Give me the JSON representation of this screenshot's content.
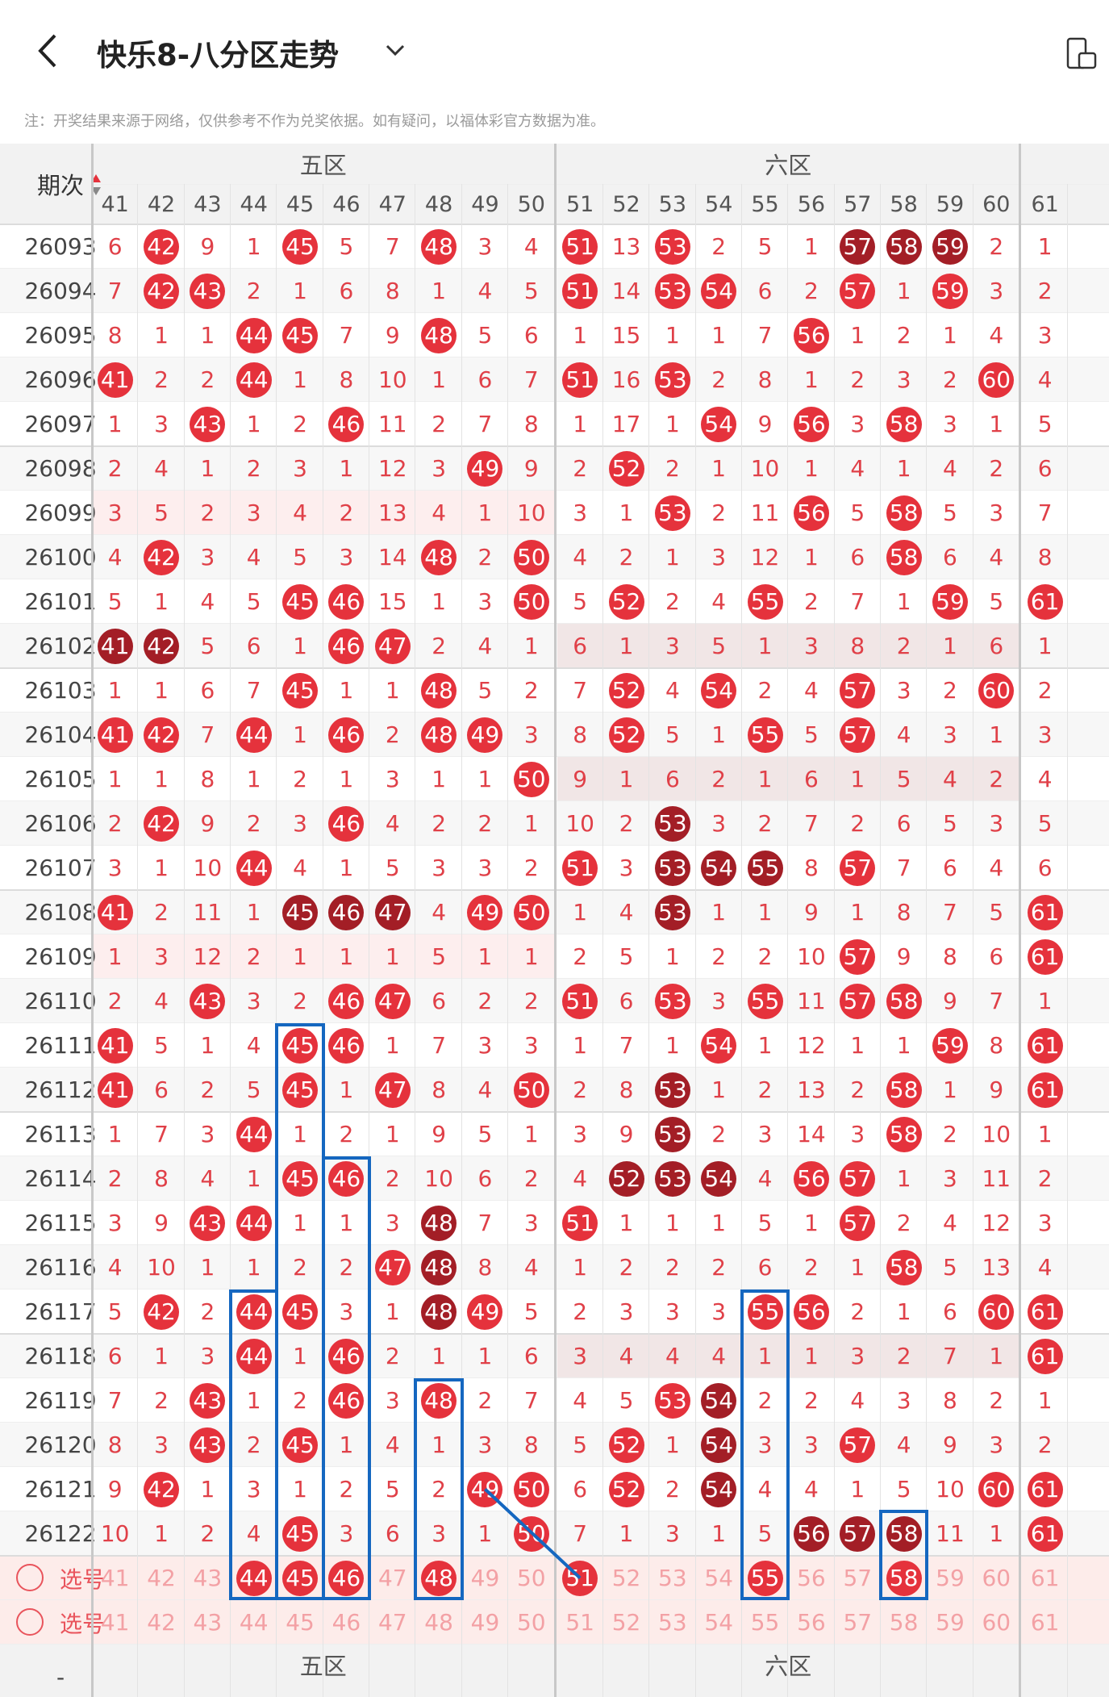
{
  "header": {
    "title": "快乐8-八分区走势",
    "note": "注：开奖结果来源于网络，仅供参考不作为兑奖依据。如有疑问，以福体彩官方数据为准。"
  },
  "table": {
    "issue_header": "期次",
    "zone_labels": [
      "五区",
      "六区"
    ],
    "columns": [
      41,
      42,
      43,
      44,
      45,
      46,
      47,
      48,
      49,
      50,
      51,
      52,
      53,
      54,
      55,
      56,
      57,
      58,
      59,
      60,
      61
    ],
    "select_label": "选号",
    "rows": [
      {
        "issue": "26093",
        "cells": [
          6,
          "B42",
          9,
          1,
          "B45",
          5,
          7,
          "B48",
          3,
          4,
          "B51",
          13,
          "B53",
          2,
          5,
          1,
          "D57",
          "D58",
          "D59",
          2,
          1
        ]
      },
      {
        "issue": "26094",
        "cells": [
          7,
          "B42",
          "B43",
          2,
          1,
          6,
          8,
          1,
          4,
          5,
          "B51",
          14,
          "B53",
          "B54",
          6,
          2,
          "B57",
          1,
          "B59",
          3,
          2
        ]
      },
      {
        "issue": "26095",
        "cells": [
          8,
          1,
          1,
          "B44",
          "B45",
          7,
          9,
          "B48",
          5,
          6,
          1,
          15,
          1,
          1,
          7,
          "B56",
          1,
          2,
          1,
          4,
          3
        ]
      },
      {
        "issue": "26096",
        "cells": [
          "B41",
          2,
          2,
          "B44",
          1,
          8,
          10,
          1,
          6,
          7,
          "B51",
          16,
          "B53",
          2,
          8,
          1,
          2,
          3,
          2,
          "B60",
          4
        ]
      },
      {
        "issue": "26097",
        "cells": [
          1,
          3,
          "B43",
          1,
          2,
          "B46",
          11,
          2,
          7,
          8,
          1,
          17,
          1,
          "B54",
          9,
          "B56",
          3,
          "B58",
          3,
          1,
          5
        ]
      },
      {
        "issue": "26098",
        "cells": [
          2,
          4,
          1,
          2,
          3,
          1,
          12,
          3,
          "B49",
          9,
          2,
          "B52",
          2,
          1,
          10,
          1,
          4,
          1,
          4,
          2,
          6
        ]
      },
      {
        "issue": "26099",
        "cells": [
          3,
          5,
          2,
          3,
          4,
          2,
          13,
          4,
          1,
          10,
          3,
          1,
          "B53",
          2,
          11,
          "B56",
          5,
          "B58",
          5,
          3,
          7
        ]
      },
      {
        "issue": "26100",
        "cells": [
          4,
          "B42",
          3,
          4,
          5,
          3,
          14,
          "B48",
          2,
          "B50",
          4,
          2,
          1,
          3,
          12,
          1,
          6,
          "B58",
          6,
          4,
          8
        ]
      },
      {
        "issue": "26101",
        "cells": [
          5,
          1,
          4,
          5,
          "B45",
          "B46",
          15,
          1,
          3,
          "B50",
          5,
          "B52",
          2,
          4,
          "B55",
          2,
          7,
          1,
          "B59",
          5,
          "B61"
        ]
      },
      {
        "issue": "26102",
        "cells": [
          "D41",
          "D42",
          5,
          6,
          1,
          "B46",
          "B47",
          2,
          4,
          1,
          6,
          1,
          3,
          5,
          1,
          3,
          8,
          2,
          1,
          6,
          1
        ]
      },
      {
        "issue": "26103",
        "cells": [
          1,
          1,
          6,
          7,
          "B45",
          1,
          1,
          "B48",
          5,
          2,
          7,
          "B52",
          4,
          "B54",
          2,
          4,
          "B57",
          3,
          2,
          "B60",
          2
        ]
      },
      {
        "issue": "26104",
        "cells": [
          "B41",
          "B42",
          7,
          "B44",
          1,
          "B46",
          2,
          "B48",
          "B49",
          3,
          8,
          "B52",
          5,
          1,
          "B55",
          5,
          "B57",
          4,
          3,
          1,
          3
        ]
      },
      {
        "issue": "26105",
        "cells": [
          1,
          1,
          8,
          1,
          2,
          1,
          3,
          1,
          1,
          "B50",
          9,
          1,
          6,
          2,
          1,
          6,
          1,
          5,
          4,
          2,
          4
        ]
      },
      {
        "issue": "26106",
        "cells": [
          2,
          "B42",
          9,
          2,
          3,
          "B46",
          4,
          2,
          2,
          1,
          10,
          2,
          "D53",
          3,
          2,
          7,
          2,
          6,
          5,
          3,
          5
        ]
      },
      {
        "issue": "26107",
        "cells": [
          3,
          1,
          10,
          "B44",
          4,
          1,
          5,
          3,
          3,
          2,
          "B51",
          3,
          "D53",
          "D54",
          "D55",
          8,
          "B57",
          7,
          6,
          4,
          6
        ]
      },
      {
        "issue": "26108",
        "cells": [
          "B41",
          2,
          11,
          1,
          "D45",
          "D46",
          "D47",
          4,
          "B49",
          "B50",
          1,
          4,
          "D53",
          1,
          1,
          9,
          1,
          8,
          7,
          5,
          "B61"
        ]
      },
      {
        "issue": "26109",
        "cells": [
          1,
          3,
          12,
          2,
          1,
          1,
          1,
          5,
          1,
          1,
          2,
          5,
          1,
          2,
          2,
          10,
          "B57",
          9,
          8,
          6,
          "B61"
        ]
      },
      {
        "issue": "26110",
        "cells": [
          2,
          4,
          "B43",
          3,
          2,
          "B46",
          "B47",
          6,
          2,
          2,
          "B51",
          6,
          "B53",
          3,
          "B55",
          11,
          "B57",
          "B58",
          9,
          7,
          1
        ]
      },
      {
        "issue": "26111",
        "cells": [
          "B41",
          5,
          1,
          4,
          "B45",
          "B46",
          1,
          7,
          3,
          3,
          1,
          7,
          1,
          "B54",
          1,
          12,
          1,
          1,
          "B59",
          8,
          "B61"
        ]
      },
      {
        "issue": "26112",
        "cells": [
          "B41",
          6,
          2,
          5,
          "B45",
          1,
          "B47",
          8,
          4,
          "B50",
          2,
          8,
          "D53",
          1,
          2,
          13,
          2,
          "B58",
          1,
          9,
          "B61"
        ]
      },
      {
        "issue": "26113",
        "cells": [
          1,
          7,
          3,
          "B44",
          1,
          2,
          1,
          9,
          5,
          1,
          3,
          9,
          "D53",
          2,
          3,
          14,
          3,
          "B58",
          2,
          10,
          1
        ]
      },
      {
        "issue": "26114",
        "cells": [
          2,
          8,
          4,
          1,
          "B45",
          "B46",
          2,
          10,
          6,
          2,
          4,
          "D52",
          "D53",
          "D54",
          4,
          "B56",
          "B57",
          1,
          3,
          11,
          2
        ]
      },
      {
        "issue": "26115",
        "cells": [
          3,
          9,
          "B43",
          "B44",
          1,
          1,
          3,
          "D48",
          7,
          3,
          "B51",
          1,
          1,
          1,
          5,
          1,
          "B57",
          2,
          4,
          12,
          3
        ]
      },
      {
        "issue": "26116",
        "cells": [
          4,
          10,
          1,
          1,
          2,
          2,
          "B47",
          "D48",
          8,
          4,
          1,
          2,
          2,
          2,
          6,
          2,
          1,
          "B58",
          5,
          13,
          4
        ]
      },
      {
        "issue": "26117",
        "cells": [
          5,
          "B42",
          2,
          "B44",
          "B45",
          3,
          1,
          "D48",
          "B49",
          5,
          2,
          3,
          3,
          3,
          "B55",
          "B56",
          2,
          1,
          6,
          "B60",
          "B61"
        ]
      },
      {
        "issue": "26118",
        "cells": [
          6,
          1,
          3,
          "B44",
          1,
          "B46",
          2,
          1,
          1,
          6,
          3,
          4,
          4,
          4,
          1,
          1,
          3,
          2,
          7,
          1,
          "B61"
        ]
      },
      {
        "issue": "26119",
        "cells": [
          7,
          2,
          "B43",
          1,
          2,
          "B46",
          3,
          "B48",
          2,
          7,
          4,
          5,
          "B53",
          "D54",
          2,
          2,
          4,
          3,
          8,
          2,
          1
        ]
      },
      {
        "issue": "26120",
        "cells": [
          8,
          3,
          "B43",
          2,
          "B45",
          1,
          4,
          1,
          3,
          8,
          5,
          "B52",
          1,
          "D54",
          3,
          3,
          "B57",
          4,
          9,
          3,
          2
        ]
      },
      {
        "issue": "26121",
        "cells": [
          9,
          "B42",
          1,
          3,
          1,
          2,
          5,
          2,
          "B49",
          "B50",
          6,
          "B52",
          2,
          "D54",
          4,
          4,
          1,
          5,
          10,
          "B60",
          "B61"
        ]
      },
      {
        "issue": "26122",
        "cells": [
          10,
          1,
          2,
          4,
          "B45",
          3,
          6,
          3,
          1,
          "B50",
          7,
          1,
          3,
          1,
          5,
          "D56",
          "D57",
          "D58",
          11,
          1,
          "B61"
        ]
      }
    ],
    "select_rows": [
      {
        "selected": [
          44,
          45,
          46,
          48,
          51,
          55,
          58
        ]
      },
      {
        "selected": []
      }
    ],
    "colors": {
      "ball": "#e5323c",
      "dark_ball": "#a31e26",
      "miss_text": "#e04048",
      "box": "#1567c0"
    }
  }
}
